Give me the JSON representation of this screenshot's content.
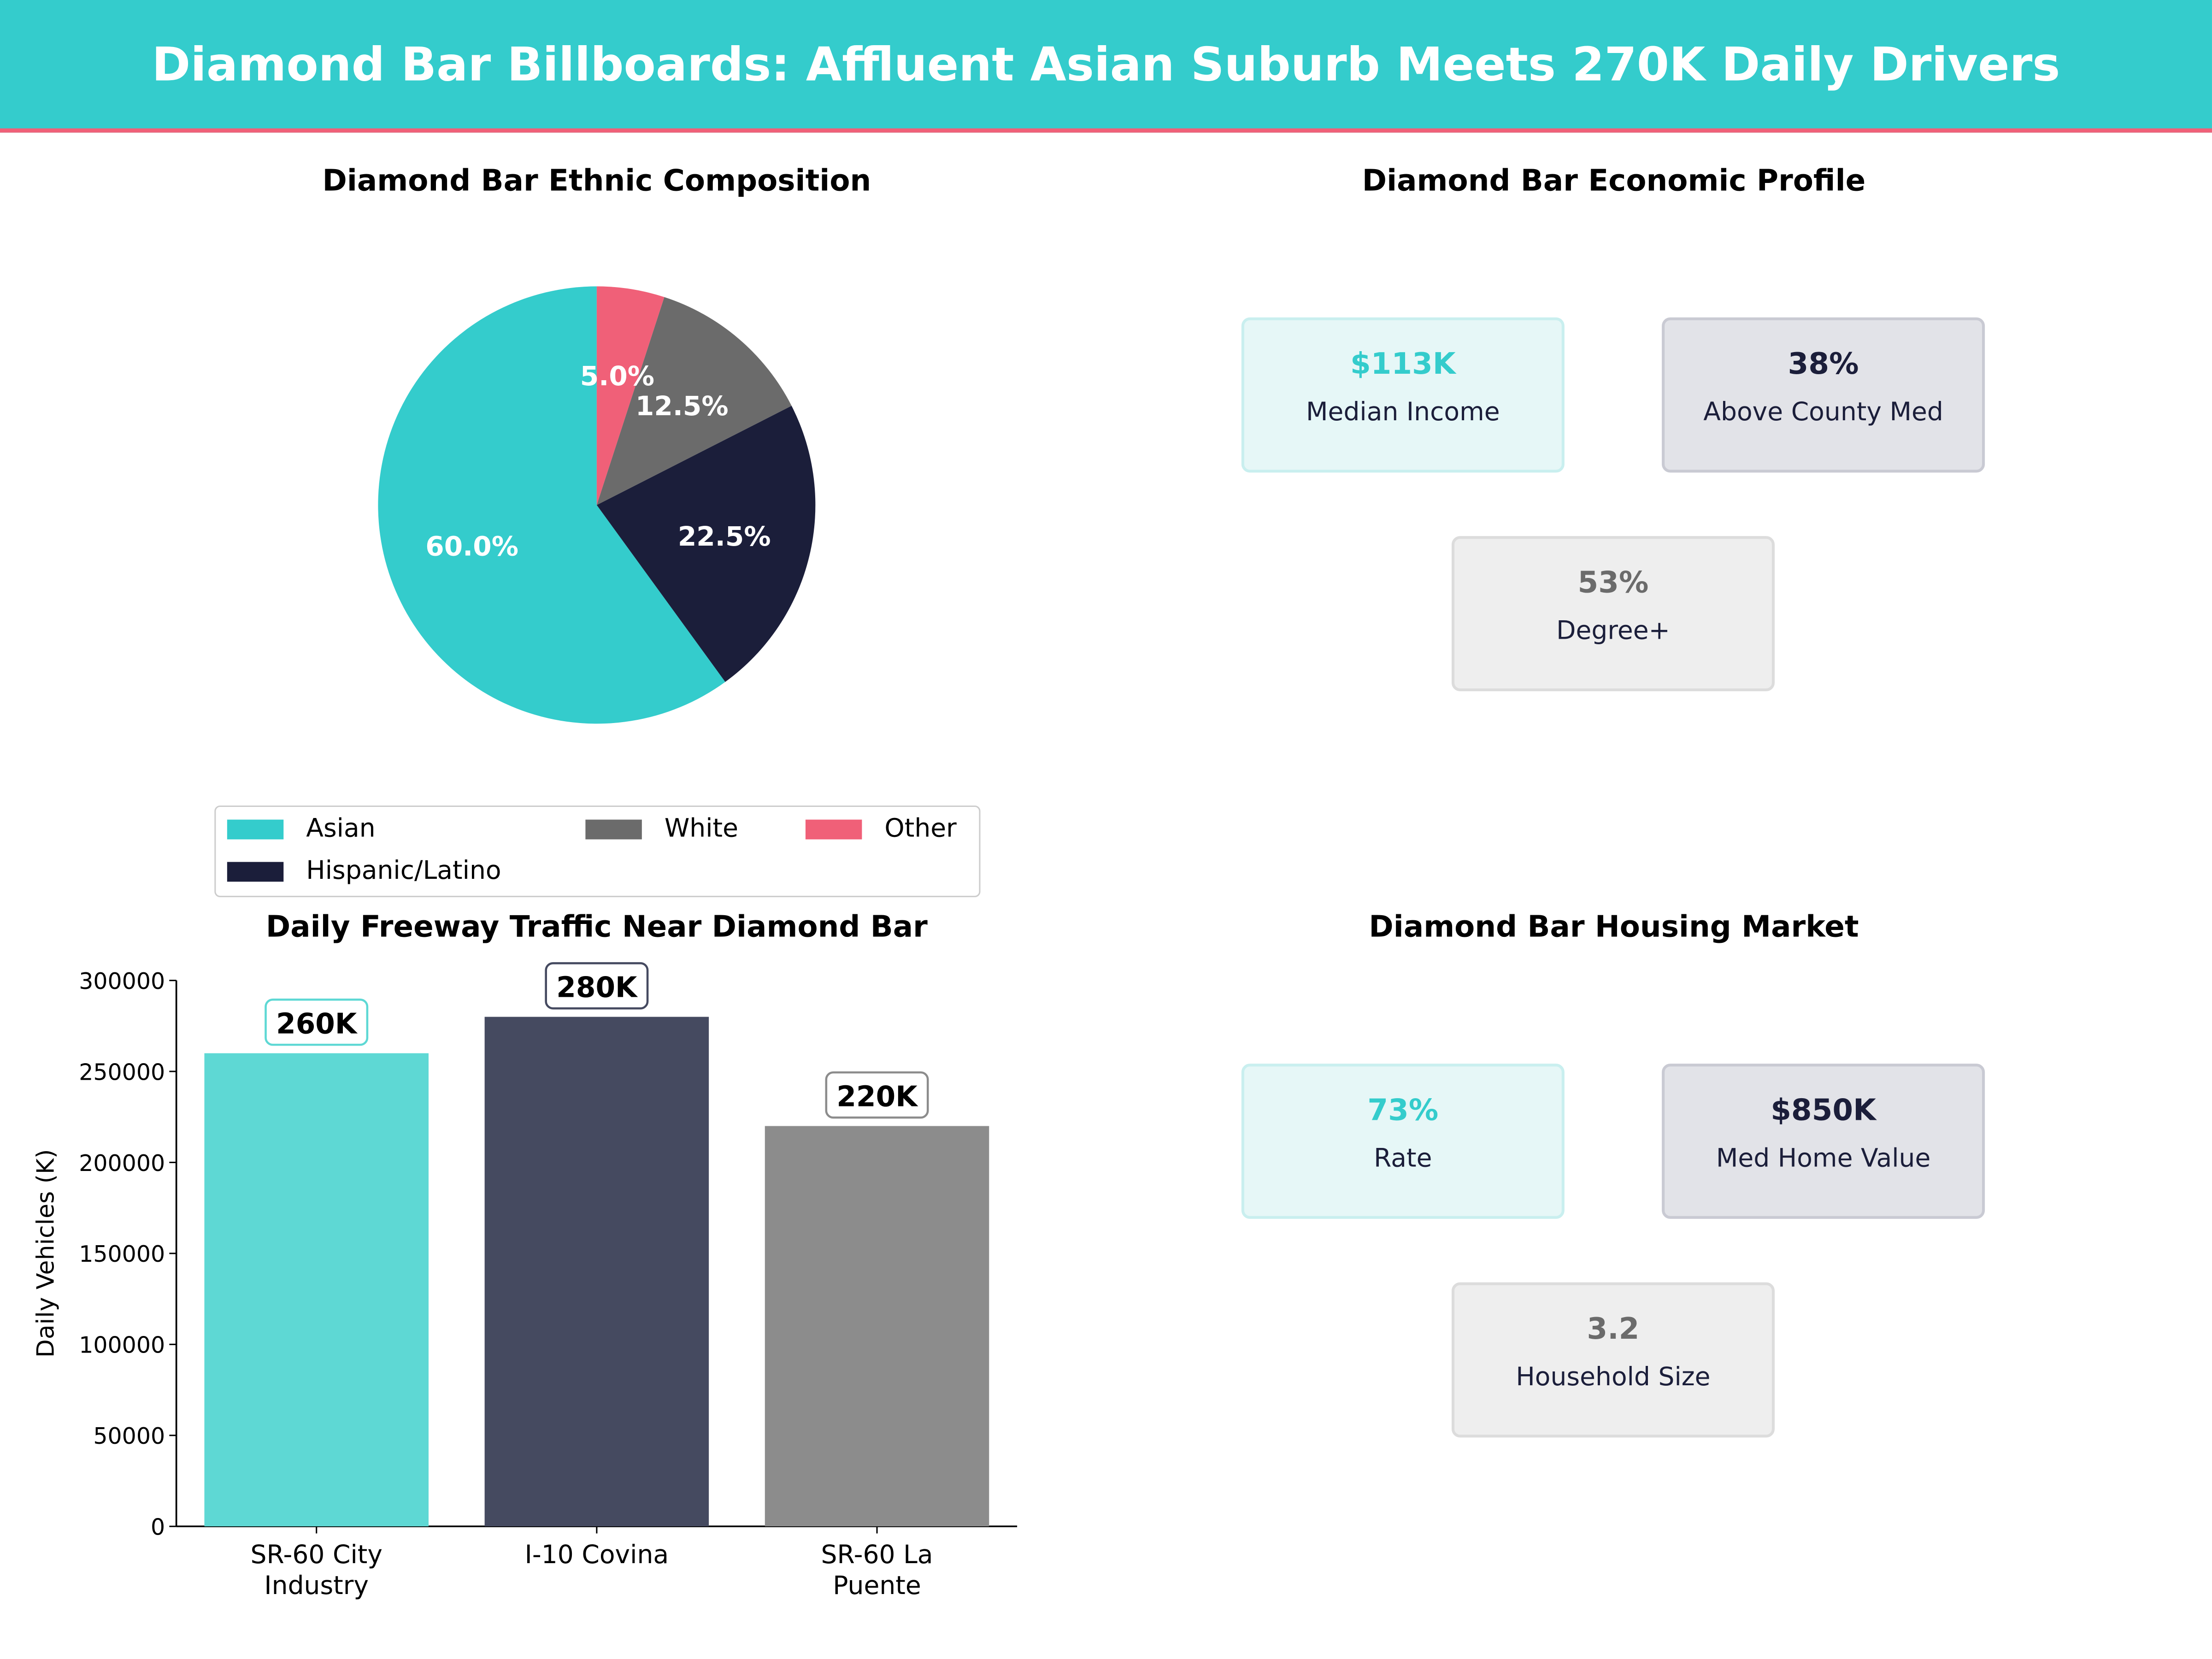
{
  "title": "Diamond Bar Billboards: Affluent Asian Suburb Meets 270K Daily Drivers",
  "colors": {
    "teal": "#34CCCC",
    "navy": "#1B1E3A",
    "gray": "#6B6B6B",
    "pink": "#F06078"
  },
  "chart_data": [
    {
      "type": "pie",
      "title": "Diamond Bar Ethnic Composition",
      "categories": [
        "Asian",
        "Hispanic/Latino",
        "White",
        "Other"
      ],
      "values": [
        60.0,
        22.5,
        12.5,
        5.0
      ],
      "labels": [
        "60.0%",
        "22.5%",
        "12.5%",
        "5.0%"
      ],
      "colors": [
        "#34CCCC",
        "#1B1E3A",
        "#6B6B6B",
        "#F06078"
      ],
      "legend_placement": "bottom"
    },
    {
      "type": "bar",
      "title": "Daily Freeway Traffic Near Diamond Bar",
      "xlabel": "",
      "ylabel": "Daily Vehicles (K)",
      "categories": [
        "SR-60 City Industry",
        "I-10 Covina",
        "SR-60 La Puente"
      ],
      "values": [
        260000,
        280000,
        220000
      ],
      "data_labels": [
        "260K",
        "280K",
        "220K"
      ],
      "colors": [
        "#5ED8D4",
        "#454A60",
        "#8C8C8C"
      ],
      "ylim": [
        0,
        300000
      ],
      "yticks": [
        "0",
        "50000",
        "100000",
        "150000",
        "200000",
        "250000",
        "300000"
      ],
      "grid": false
    }
  ],
  "economic": {
    "title": "Diamond Bar Economic Profile",
    "cards": [
      {
        "value": "$113K",
        "label": "Median Income"
      },
      {
        "value": "38%",
        "label": "Above County Med"
      },
      {
        "value": "53%",
        "label": "Degree+"
      }
    ]
  },
  "housing": {
    "title": "Diamond Bar Housing Market",
    "cards": [
      {
        "value": "73%",
        "label": "Rate"
      },
      {
        "value": "$850K",
        "label": "Med Home Value"
      },
      {
        "value": "3.2",
        "label": "Household Size"
      }
    ]
  }
}
